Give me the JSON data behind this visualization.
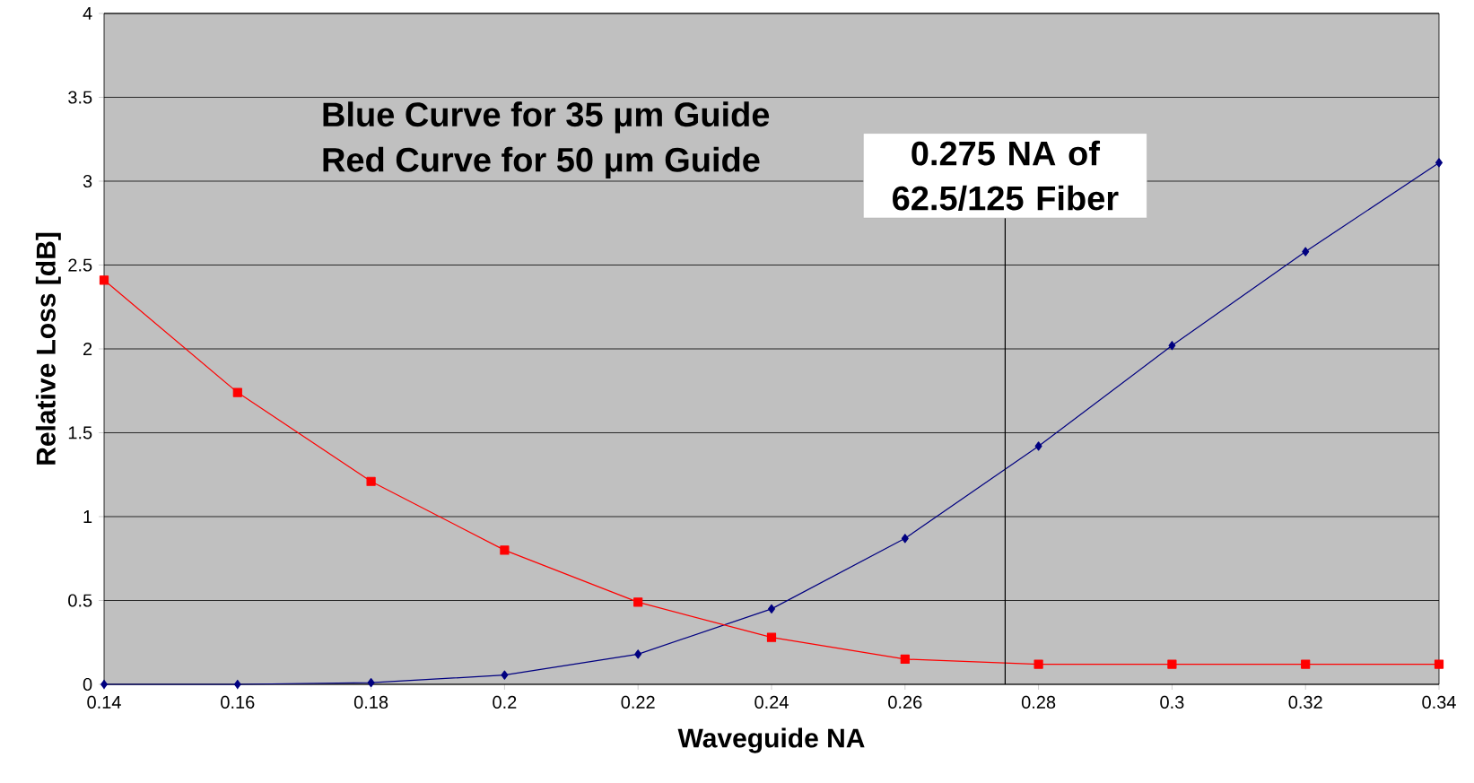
{
  "chart_data": {
    "type": "line",
    "xlabel": "Waveguide NA",
    "ylabel": "Relative Loss [dB]",
    "x": [
      0.14,
      0.16,
      0.18,
      0.2,
      0.22,
      0.24,
      0.26,
      0.28,
      0.3,
      0.32,
      0.34
    ],
    "series": [
      {
        "color": "#000080",
        "marker": "diamond",
        "values": [
          0,
          0,
          0.01,
          0.055,
          0.18,
          0.45,
          0.87,
          1.42,
          2.02,
          2.58,
          3.11
        ]
      },
      {
        "color": "#ff0000",
        "marker": "square",
        "values": [
          2.41,
          1.74,
          1.21,
          0.8,
          0.49,
          0.28,
          0.15,
          0.12,
          0.12,
          0.12,
          0.12
        ]
      }
    ],
    "xlim": [
      0.14,
      0.34
    ],
    "ylim": [
      0,
      4
    ],
    "xticks": [
      0.14,
      0.16,
      0.18,
      0.2,
      0.22,
      0.24,
      0.26,
      0.28,
      0.3,
      0.32,
      0.34
    ],
    "yticks": [
      0,
      0.5,
      1,
      1.5,
      2,
      2.5,
      3,
      3.5,
      4
    ],
    "grid": "y",
    "ref_lines": [
      {
        "axis": "x",
        "value": 0.275,
        "label": "0.275 NA of 62.5/125 Fiber",
        "color": "#000000"
      }
    ],
    "annotations": [
      "Blue Curve for 35 μm Guide",
      "Red Curve for 50 μm Guide"
    ]
  }
}
